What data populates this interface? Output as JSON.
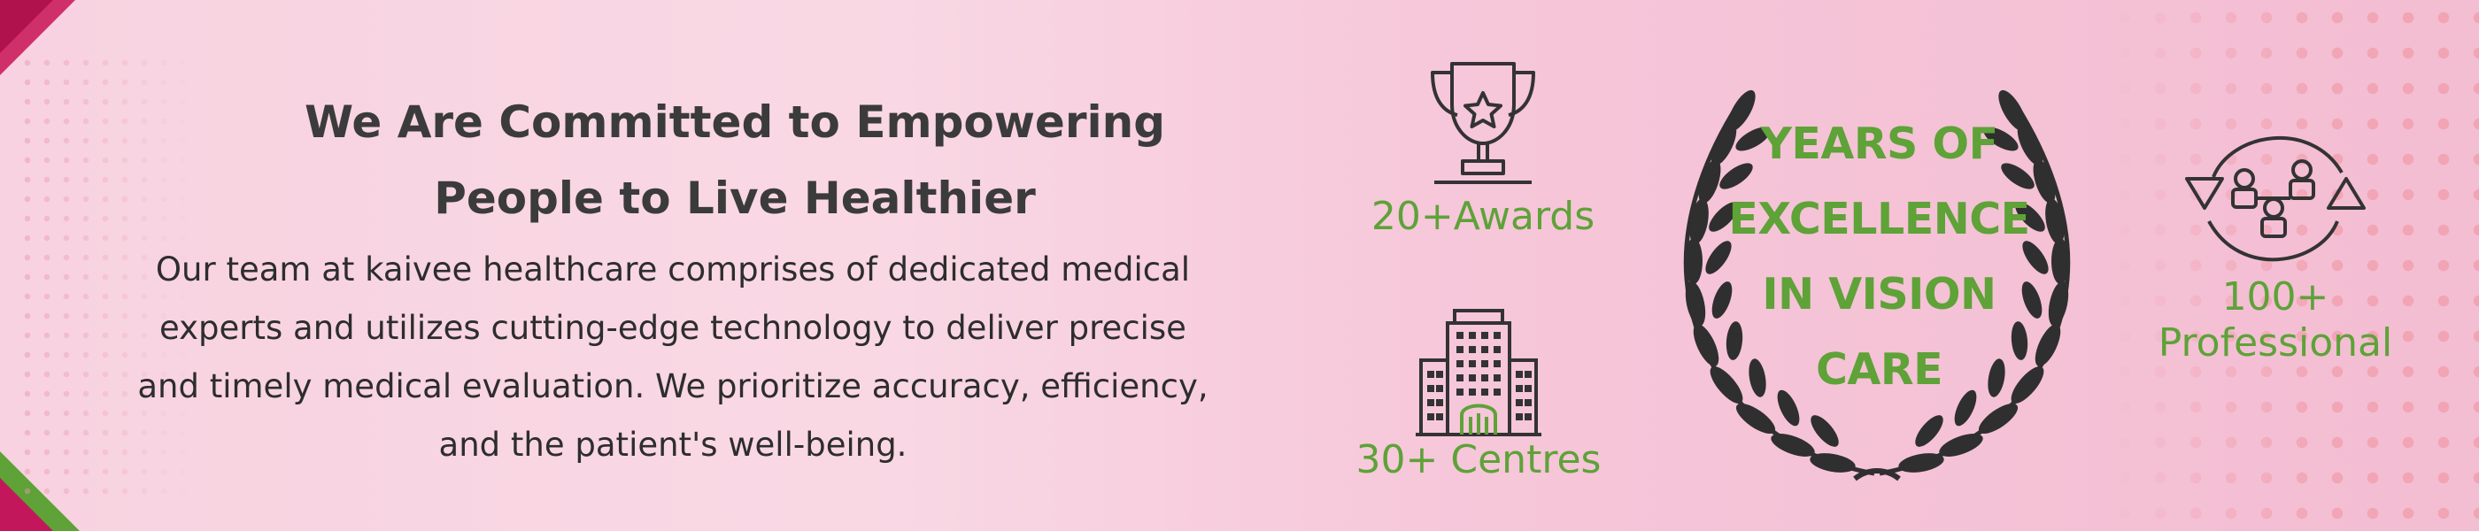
{
  "banner": {
    "heading_line1": "We Are Committed to Empowering",
    "heading_line2": "People to Live Healthier",
    "description_lines": [
      "Our team at kaivee healthcare comprises of dedicated medical",
      "experts and utilizes cutting-edge technology to deliver precise",
      "and timely medical evaluation. We prioritize accuracy, efficiency,",
      "and the patient's well-being."
    ]
  },
  "stats": {
    "awards": {
      "label": "20+Awards",
      "icon": "trophy-icon"
    },
    "centres": {
      "label": "30+ Centres",
      "icon": "building-icon"
    },
    "professionals": {
      "label_line1": "100+",
      "label_line2": "Professional",
      "icon": "team-cycle-icon"
    }
  },
  "excellence": {
    "lines": [
      "YEARS OF",
      "EXCELLENCE",
      "IN VISION",
      "CARE"
    ],
    "icon": "laurel-wreath-icon"
  },
  "colors": {
    "accent_green": "#5ea238",
    "heading_text": "#3b3b3b",
    "body_text": "#2d2d2d",
    "corner_magenta": "#c2185b",
    "background_pink": "#f8d2e0"
  }
}
